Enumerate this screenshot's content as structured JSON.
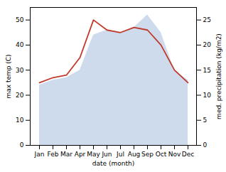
{
  "chart_data": {
    "type": "line",
    "categories": [
      "Jan",
      "Feb",
      "Mar",
      "Apr",
      "May",
      "Jun",
      "Jul",
      "Aug",
      "Sep",
      "Oct",
      "Nov",
      "Dec"
    ],
    "xlabel": "date (month)",
    "ylabel": "max temp (C)",
    "y2label": "med. precipitation (kg/m2)",
    "ylim": [
      0,
      55
    ],
    "yticks": [
      0,
      10,
      20,
      30,
      40,
      50
    ],
    "y2lim": [
      0,
      27.5
    ],
    "y2ticks": [
      0,
      5,
      10,
      15,
      20,
      25
    ],
    "grid": false,
    "series": [
      {
        "type": "area",
        "axis": "y2",
        "color": "#b8cce4",
        "values": [
          12,
          13,
          13.5,
          15,
          22,
          23,
          22.5,
          23.5,
          26,
          22.5,
          15,
          13
        ]
      },
      {
        "type": "line",
        "color": "#c0392b",
        "values": [
          25,
          27,
          28,
          35,
          50,
          46,
          45,
          47,
          46,
          40,
          30,
          25
        ]
      }
    ]
  }
}
